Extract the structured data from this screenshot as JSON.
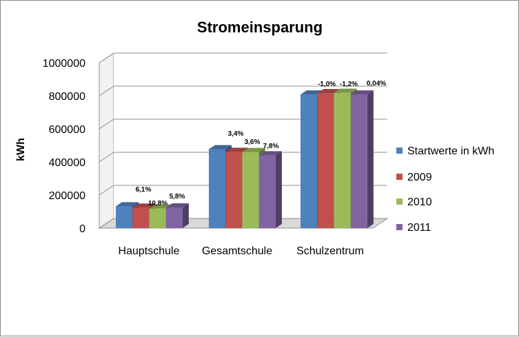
{
  "chart_data": {
    "type": "bar",
    "title": "Stromeinsparung",
    "ylabel": "kWh",
    "xlabel": "",
    "ylim": [
      0,
      1000000
    ],
    "yticks": [
      0,
      200000,
      400000,
      600000,
      800000,
      1000000
    ],
    "ytick_labels": [
      "0",
      "200000",
      "400000",
      "600000",
      "800000",
      "1000000"
    ],
    "categories": [
      "Hauptschule",
      "Gesamtschule",
      "Schulzentrum"
    ],
    "series": [
      {
        "name": "Startwerte in kWh",
        "color": "#4f81bd",
        "values": [
          132000,
          477000,
          808000
        ]
      },
      {
        "name": "2009",
        "color": "#c0504d",
        "values": [
          124000,
          461000,
          816000
        ]
      },
      {
        "name": "2010",
        "color": "#9bbb59",
        "values": [
          118000,
          460000,
          818000
        ]
      },
      {
        "name": "2011",
        "color": "#8064a2",
        "values": [
          125000,
          440000,
          808000
        ]
      }
    ],
    "data_labels": [
      [
        "",
        "3,4%",
        "-1,0%"
      ],
      [
        "6,1%",
        "3,6%",
        "-1,2%"
      ],
      [
        "10,8%",
        "7,8%",
        "0,04%"
      ],
      [
        "5,8%",
        "",
        ""
      ]
    ],
    "grid": true,
    "legend_position": "right",
    "style": "3d-clustered-column"
  }
}
